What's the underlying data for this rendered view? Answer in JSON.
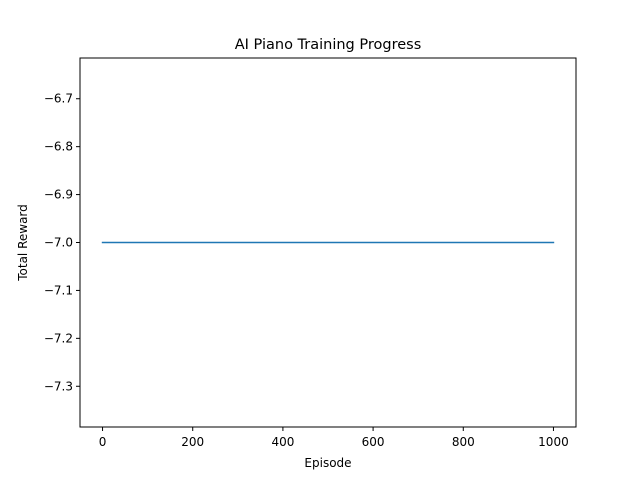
{
  "chart_data": {
    "type": "line",
    "title": "AI Piano Training Progress",
    "xlabel": "Episode",
    "ylabel": "Total Reward",
    "xlim": [
      -50,
      1050
    ],
    "ylim": [
      -7.385,
      -6.615
    ],
    "xticks": [
      0,
      200,
      400,
      600,
      800,
      1000
    ],
    "yticks": [
      -6.7,
      -6.8,
      -6.9,
      -7.0,
      -7.1,
      -7.2,
      -7.3
    ],
    "x_tick_labels": [
      "0",
      "200",
      "400",
      "600",
      "800",
      "1000"
    ],
    "y_tick_labels": [
      "−6.7",
      "−6.8",
      "−6.9",
      "−7.0",
      "−7.1",
      "−7.2",
      "−7.3"
    ],
    "grid": false,
    "series": [
      {
        "color": "#1f77b4",
        "x": [
          0,
          1000
        ],
        "y": [
          -7.0,
          -7.0
        ]
      }
    ]
  }
}
